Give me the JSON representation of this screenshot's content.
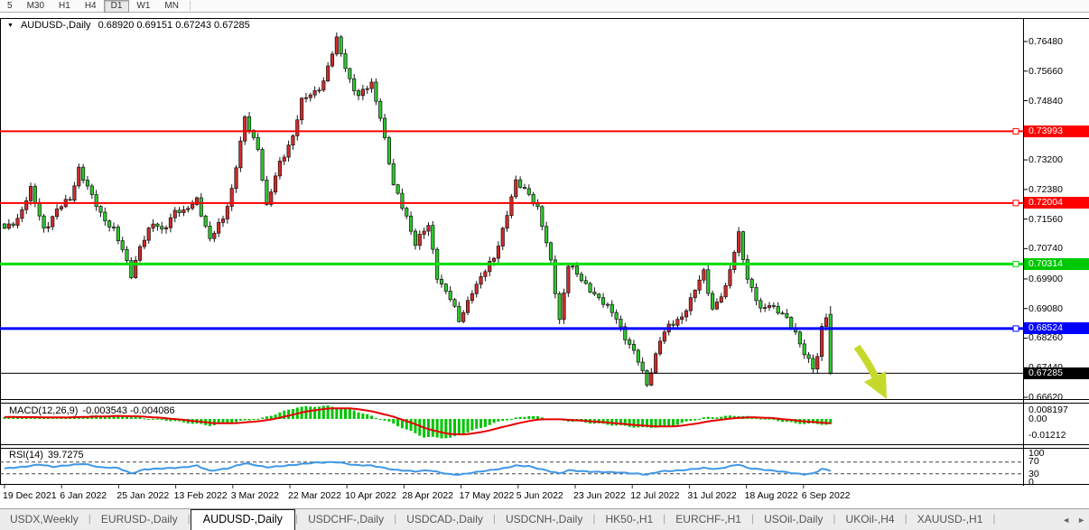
{
  "toolbar": {
    "periods": [
      {
        "label": "5",
        "name": "m5",
        "active": false
      },
      {
        "label": "M30",
        "name": "m30",
        "active": false
      },
      {
        "label": "H1",
        "name": "h1",
        "active": false
      },
      {
        "label": "H4",
        "name": "h4",
        "active": false
      },
      {
        "label": "D1",
        "name": "d1",
        "active": true
      },
      {
        "label": "W1",
        "name": "w1",
        "active": false
      },
      {
        "label": "MN",
        "name": "mn",
        "active": false
      }
    ]
  },
  "chart": {
    "symbol": "AUDUSD-,Daily",
    "ohlc": "0.68920 0.69151 0.67243 0.67285",
    "dropdown_icon": "▼"
  },
  "indicators": {
    "macd": {
      "label": "MACD(12,26,9)",
      "values": "-0.003543 -0.004086",
      "axis": [
        "0.008197",
        "0.00",
        "-0.01212"
      ]
    },
    "rsi": {
      "label": "RSI(14)",
      "value": "39.7275",
      "axis": [
        "100",
        "70",
        "30",
        "0"
      ]
    }
  },
  "price_axis": {
    "ticks": [
      "0.76480",
      "0.75660",
      "0.74840",
      "0.73200",
      "0.72380",
      "0.71560",
      "0.70740",
      "0.69900",
      "0.69080",
      "0.68260",
      "0.67440",
      "0.66620"
    ],
    "tags": [
      {
        "label": "0.73993",
        "color": "#ff0000"
      },
      {
        "label": "0.72004",
        "color": "#ff0000"
      },
      {
        "label": "0.70314",
        "color": "#00c800"
      },
      {
        "label": "0.68524",
        "color": "#0000ff"
      },
      {
        "label": "0.67285",
        "color": "#000000"
      }
    ]
  },
  "x_axis": {
    "dates": [
      "19 Dec 2021",
      "6 Jan 2022",
      "25 Jan 2022",
      "13 Feb 2022",
      "3 Mar 2022",
      "22 Mar 2022",
      "10 Apr 2022",
      "28 Apr 2022",
      "17 May 2022",
      "5 Jun 2022",
      "23 Jun 2022",
      "12 Jul 2022",
      "31 Jul 2022",
      "18 Aug 2022",
      "6 Sep 2022"
    ]
  },
  "tabs": {
    "items": [
      "USDX,Weekly",
      "EURUSD-,Daily",
      "AUDUSD-,Daily",
      "USDCHF-,Daily",
      "USDCAD-,Daily",
      "USDCNH-,Daily",
      "HK50-,H1",
      "EURCHF-,H1",
      "USOil-,Daily",
      "UKOil-,H4",
      "XAUUSD-,H1"
    ],
    "active": "AUDUSD-,Daily",
    "scroll_left": "◄",
    "scroll_right": "►"
  },
  "colors": {
    "bull_body": "#d22b2b",
    "bear_body": "#2ec72e",
    "wick": "#151515",
    "macd_hist": "#00c400",
    "macd_signal": "#e60000",
    "rsi_line": "#3f97e6",
    "level_red": "#ff0000",
    "level_green": "#00dd00",
    "level_blue": "#0000ff",
    "current_price_line": "#000000",
    "arrow": "#c6d92b"
  },
  "chart_data": {
    "type": "candlestick",
    "symbol": "AUDUSD",
    "timeframe": "Daily",
    "bars": 190,
    "current_ohlc": {
      "open": 0.6892,
      "high": 0.69151,
      "low": 0.67243,
      "close": 0.67285
    },
    "price_range": [
      0.6662,
      0.7648
    ],
    "levels": [
      {
        "price": 0.73993,
        "color": "#ff0000",
        "width": 2,
        "type": "resistance"
      },
      {
        "price": 0.72004,
        "color": "#ff0000",
        "width": 2,
        "type": "resistance"
      },
      {
        "price": 0.70314,
        "color": "#00dd00",
        "width": 3,
        "type": "resistance"
      },
      {
        "price": 0.68524,
        "color": "#0000ff",
        "width": 3,
        "type": "support"
      },
      {
        "price": 0.67285,
        "color": "#000000",
        "width": 1,
        "type": "current-price"
      }
    ],
    "close_path": [
      [
        0,
        0.7125
      ],
      [
        3,
        0.716
      ],
      [
        6,
        0.7235
      ],
      [
        9,
        0.713
      ],
      [
        12,
        0.718
      ],
      [
        15,
        0.721
      ],
      [
        17,
        0.73
      ],
      [
        20,
        0.7215
      ],
      [
        22,
        0.717
      ],
      [
        25,
        0.713
      ],
      [
        29,
        0.7
      ],
      [
        31,
        0.7085
      ],
      [
        34,
        0.714
      ],
      [
        36,
        0.7125
      ],
      [
        39,
        0.718
      ],
      [
        41,
        0.717
      ],
      [
        44,
        0.7215
      ],
      [
        47,
        0.7095
      ],
      [
        50,
        0.716
      ],
      [
        52,
        0.724
      ],
      [
        55,
        0.743
      ],
      [
        58,
        0.7355
      ],
      [
        60,
        0.719
      ],
      [
        63,
        0.731
      ],
      [
        66,
        0.739
      ],
      [
        68,
        0.748
      ],
      [
        71,
        0.751
      ],
      [
        73,
        0.754
      ],
      [
        76,
        0.765
      ],
      [
        79,
        0.7545
      ],
      [
        81,
        0.7495
      ],
      [
        84,
        0.753
      ],
      [
        86,
        0.7445
      ],
      [
        89,
        0.7245
      ],
      [
        92,
        0.7165
      ],
      [
        94,
        0.709
      ],
      [
        97,
        0.7135
      ],
      [
        99,
        0.7
      ],
      [
        102,
        0.6935
      ],
      [
        104,
        0.687
      ],
      [
        107,
        0.696
      ],
      [
        109,
        0.699
      ],
      [
        112,
        0.705
      ],
      [
        114,
        0.713
      ],
      [
        117,
        0.7255
      ],
      [
        120,
        0.723
      ],
      [
        122,
        0.7185
      ],
      [
        125,
        0.7035
      ],
      [
        127,
        0.688
      ],
      [
        129,
        0.703
      ],
      [
        132,
        0.6985
      ],
      [
        134,
        0.6965
      ],
      [
        137,
        0.692
      ],
      [
        140,
        0.6885
      ],
      [
        142,
        0.683
      ],
      [
        145,
        0.676
      ],
      [
        147,
        0.67
      ],
      [
        150,
        0.682
      ],
      [
        152,
        0.6855
      ],
      [
        155,
        0.689
      ],
      [
        157,
        0.693
      ],
      [
        160,
        0.701
      ],
      [
        162,
        0.691
      ],
      [
        165,
        0.696
      ],
      [
        168,
        0.712
      ],
      [
        170,
        0.699
      ],
      [
        173,
        0.69
      ],
      [
        175,
        0.6925
      ],
      [
        178,
        0.689
      ],
      [
        181,
        0.684
      ],
      [
        183,
        0.679
      ],
      [
        185,
        0.674
      ],
      [
        186,
        0.677
      ],
      [
        187,
        0.685
      ],
      [
        188,
        0.689
      ],
      [
        189,
        0.67285
      ]
    ],
    "macd": {
      "params": [
        12,
        26,
        9
      ],
      "last_main": -0.003543,
      "last_signal": -0.004086,
      "axis_range": [
        -0.01212,
        0.008197
      ],
      "path": [
        [
          0,
          0.0012
        ],
        [
          12,
          0.0008
        ],
        [
          18,
          0.0018
        ],
        [
          26,
          0.0022
        ],
        [
          36,
          -0.0005
        ],
        [
          47,
          -0.0042
        ],
        [
          59,
          0.0005
        ],
        [
          67,
          0.0075
        ],
        [
          74,
          0.0082
        ],
        [
          80,
          0.0055
        ],
        [
          88,
          -0.002
        ],
        [
          96,
          -0.0115
        ],
        [
          102,
          -0.0121
        ],
        [
          114,
          -0.001
        ],
        [
          120,
          0.0021
        ],
        [
          127,
          -0.0008
        ],
        [
          146,
          -0.0056
        ],
        [
          152,
          -0.0048
        ],
        [
          160,
          0.0008
        ],
        [
          168,
          0.0022
        ],
        [
          174,
          0.0002
        ],
        [
          181,
          -0.0028
        ],
        [
          189,
          -0.003543
        ]
      ]
    },
    "rsi": {
      "period": 14,
      "last": 39.7275,
      "axis_range": [
        0,
        100
      ],
      "levels": [
        70,
        30
      ],
      "path": [
        [
          0,
          48
        ],
        [
          5,
          55
        ],
        [
          8,
          62
        ],
        [
          11,
          54
        ],
        [
          18,
          64
        ],
        [
          22,
          52
        ],
        [
          26,
          50
        ],
        [
          29,
          31
        ],
        [
          32,
          45
        ],
        [
          36,
          48
        ],
        [
          41,
          52
        ],
        [
          44,
          58
        ],
        [
          47,
          40
        ],
        [
          51,
          48
        ],
        [
          55,
          66
        ],
        [
          58,
          58
        ],
        [
          60,
          52
        ],
        [
          66,
          60
        ],
        [
          71,
          68
        ],
        [
          76,
          70
        ],
        [
          80,
          60
        ],
        [
          84,
          58
        ],
        [
          89,
          44
        ],
        [
          94,
          38
        ],
        [
          97,
          42
        ],
        [
          102,
          28
        ],
        [
          104,
          27
        ],
        [
          109,
          38
        ],
        [
          114,
          48
        ],
        [
          117,
          58
        ],
        [
          120,
          56
        ],
        [
          122,
          48
        ],
        [
          125,
          38
        ],
        [
          127,
          31
        ],
        [
          129,
          42
        ],
        [
          134,
          37
        ],
        [
          140,
          35
        ],
        [
          145,
          30
        ],
        [
          147,
          27
        ],
        [
          150,
          38
        ],
        [
          155,
          42
        ],
        [
          160,
          50
        ],
        [
          163,
          46
        ],
        [
          168,
          62
        ],
        [
          170,
          50
        ],
        [
          175,
          42
        ],
        [
          178,
          37
        ],
        [
          181,
          31
        ],
        [
          183,
          28
        ],
        [
          185,
          31
        ],
        [
          186,
          38
        ],
        [
          187,
          47
        ],
        [
          189,
          39.7
        ]
      ]
    },
    "annotation_arrow": {
      "shaft": [
        [
          949,
          384
        ],
        [
          962,
          402
        ],
        [
          969,
          417
        ]
      ],
      "tip": [
        982,
        442
      ],
      "color": "#c6d92b",
      "direction": "down-right"
    }
  }
}
